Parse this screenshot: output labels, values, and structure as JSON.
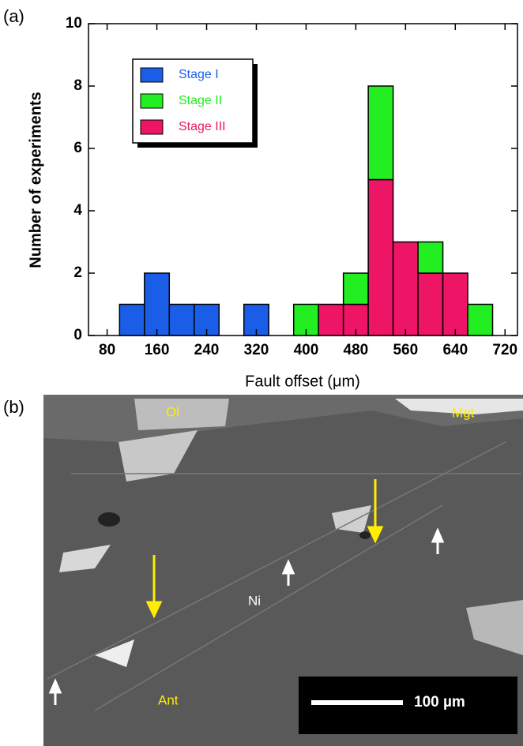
{
  "chart_data": {
    "type": "histogram",
    "panel_label": "(a)",
    "xlabel": "Fault offset (μm)",
    "ylabel": "Number of experiments",
    "bins": [
      100,
      140,
      180,
      220,
      260,
      300,
      340,
      380,
      420,
      460,
      500,
      540,
      580,
      620,
      660,
      700
    ],
    "series": [
      {
        "name": "Stage I",
        "color": "#1a5ee8",
        "values": [
          1,
          2,
          1,
          1,
          0,
          1,
          0,
          0,
          0,
          0,
          0,
          0,
          0,
          0,
          0
        ]
      },
      {
        "name": "Stage II",
        "color": "#22ee22",
        "values": [
          0,
          0,
          0,
          0,
          0,
          0,
          0,
          1,
          0,
          1,
          3,
          0,
          1,
          0,
          1
        ]
      },
      {
        "name": "Stage III",
        "color": "#ee1466",
        "values": [
          0,
          0,
          0,
          0,
          0,
          0,
          0,
          0,
          1,
          1,
          5,
          3,
          2,
          2,
          0
        ]
      }
    ],
    "xlim": [
      50,
      740
    ],
    "ylim": [
      0,
      10
    ],
    "xticks": [
      80,
      160,
      240,
      320,
      400,
      480,
      560,
      640,
      720
    ],
    "yticks": [
      0,
      2,
      4,
      6,
      8,
      10
    ],
    "legend": "upper left"
  },
  "image_panel": {
    "panel_label": "(b)",
    "labels": [
      "Ol",
      "Mgt",
      "Ni",
      "Ant"
    ],
    "scale_bar": "100 µm"
  }
}
